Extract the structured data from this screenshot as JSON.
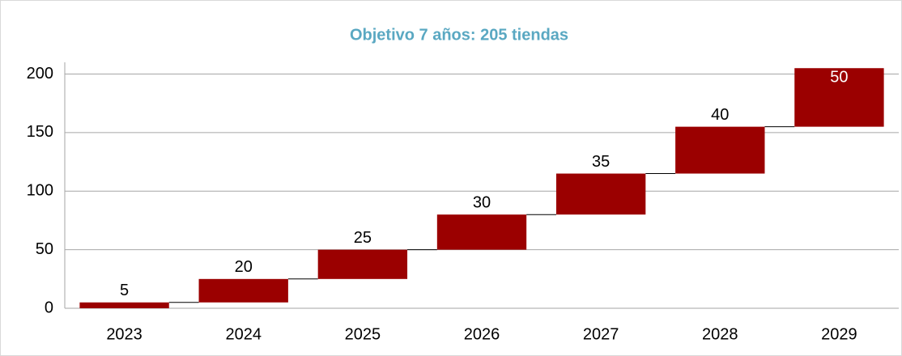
{
  "chart_data": {
    "type": "waterfall",
    "title": "Objetivo 7 años: 205 tiendas",
    "categories": [
      "2023",
      "2024",
      "2025",
      "2026",
      "2027",
      "2028",
      "2029"
    ],
    "values": [
      5,
      20,
      25,
      30,
      35,
      40,
      50
    ],
    "color": "#9b0000",
    "ylim": [
      0,
      210
    ],
    "yticks": [
      0,
      50,
      100,
      150,
      200
    ],
    "grid": true
  }
}
